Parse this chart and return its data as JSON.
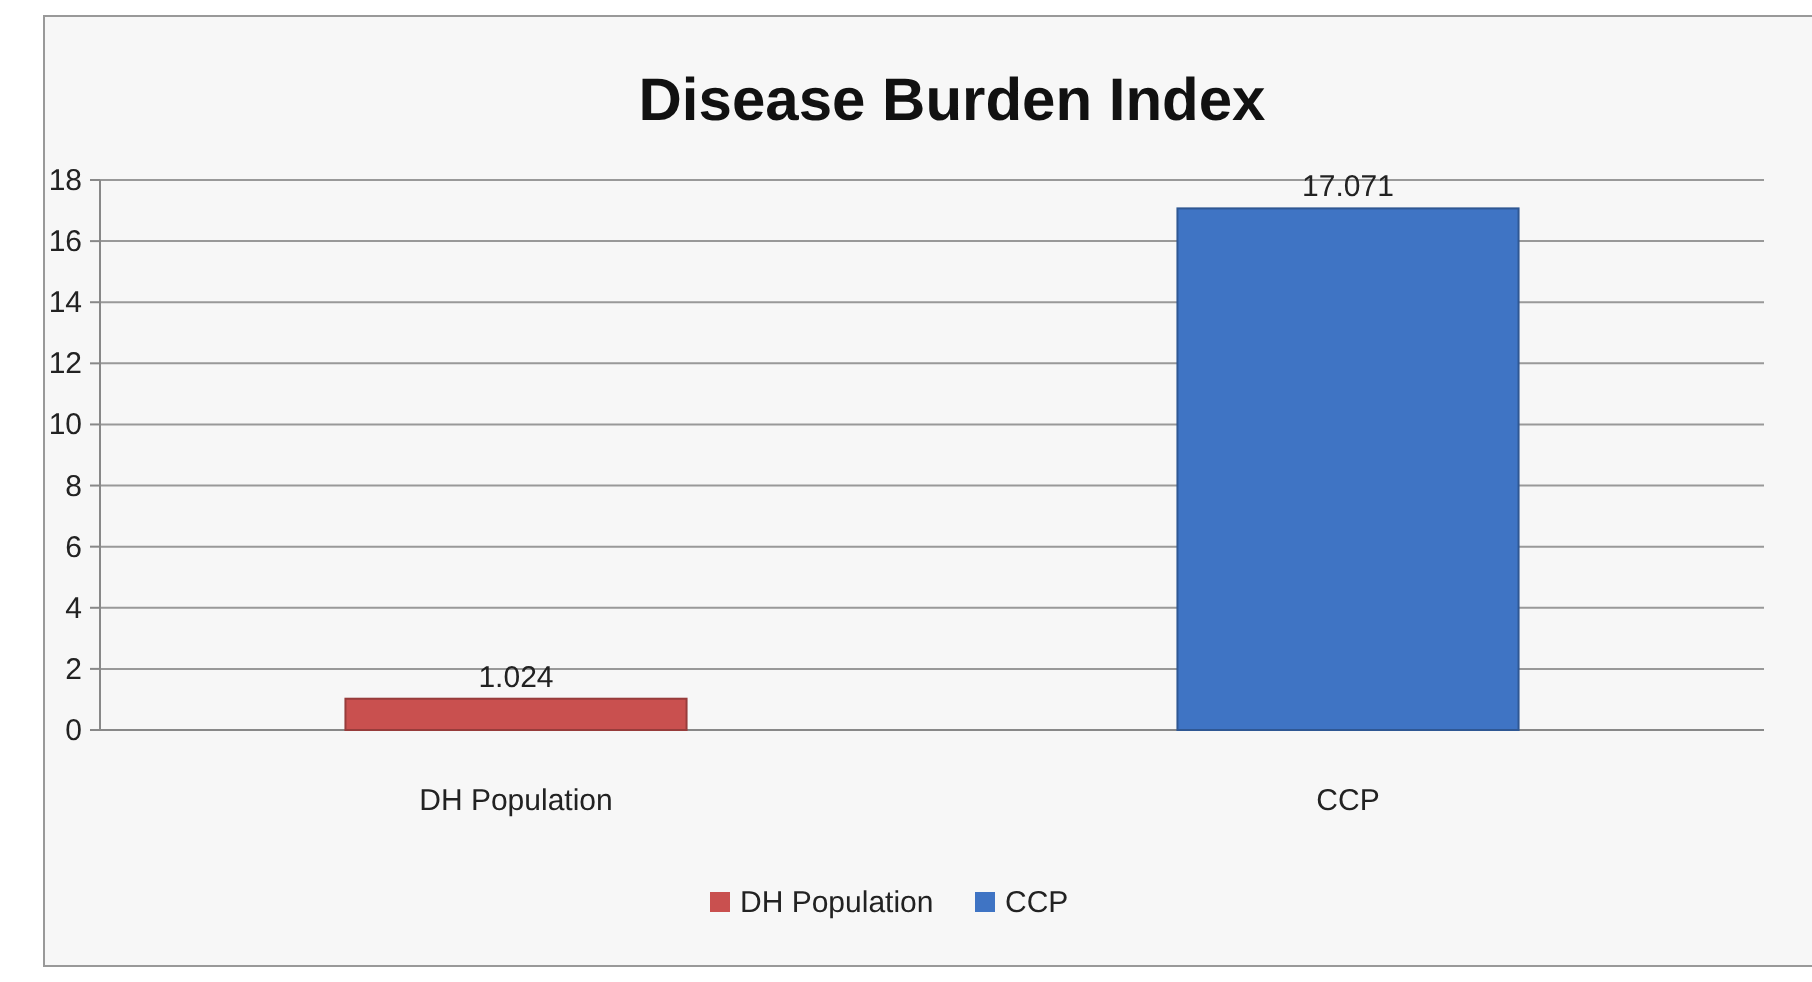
{
  "chart_data": {
    "type": "bar",
    "title": "Disease Burden Index",
    "categories": [
      "DH Population",
      "CCP"
    ],
    "series": [
      {
        "name": "DH Population",
        "color": "#c9504f",
        "values": [
          1.024,
          null
        ]
      },
      {
        "name": "CCP",
        "color": "#3f74c4",
        "values": [
          null,
          17.071
        ]
      }
    ],
    "ylim": [
      0,
      18
    ],
    "yticks": [
      0,
      2,
      4,
      6,
      8,
      10,
      12,
      14,
      16,
      18
    ],
    "grid": "y",
    "legend": "bottom",
    "data_labels": true
  }
}
